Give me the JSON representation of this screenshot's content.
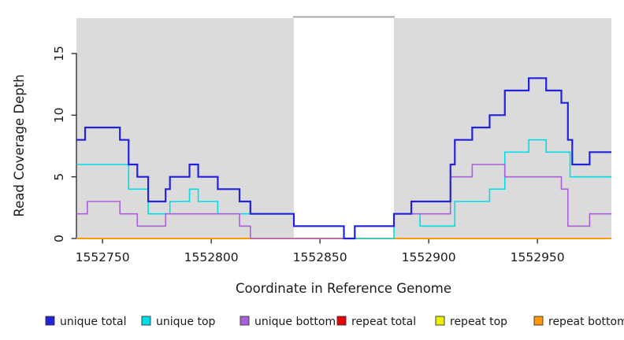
{
  "chart_data": {
    "type": "line",
    "subtype": "step",
    "title": "",
    "xlabel": "Coordinate in Reference Genome",
    "ylabel": "Read Coverage Depth",
    "xlim": [
      1552738,
      1552984
    ],
    "ylim": [
      0,
      17.9
    ],
    "x_ticks": [
      1552750,
      1552800,
      1552850,
      1552900,
      1552950
    ],
    "y_ticks": [
      0,
      5,
      10,
      15
    ],
    "grid": false,
    "legend_position": "bottom",
    "axis_color": "#333333",
    "text_color": "#1a1a1a",
    "background_shading": {
      "color": "#dbdbdb",
      "regions": [
        [
          1552738,
          1552838
        ],
        [
          1552884,
          1552984
        ]
      ],
      "gap_top_rule_color": "#a9a9a9"
    },
    "draw_order": [
      3,
      4,
      5,
      1,
      2,
      0
    ],
    "series": [
      {
        "name": "unique total",
        "color": "#2222dd",
        "width": 2.2,
        "steps": [
          [
            1552738,
            8
          ],
          [
            1552742,
            9
          ],
          [
            1552758,
            8
          ],
          [
            1552762,
            6
          ],
          [
            1552766,
            5
          ],
          [
            1552771,
            3
          ],
          [
            1552779,
            4
          ],
          [
            1552781,
            5
          ],
          [
            1552790,
            6
          ],
          [
            1552794,
            5
          ],
          [
            1552803,
            4
          ],
          [
            1552813,
            3
          ],
          [
            1552818,
            2
          ],
          [
            1552838,
            1
          ],
          [
            1552861,
            0
          ],
          [
            1552866,
            1
          ],
          [
            1552884,
            2
          ],
          [
            1552892,
            3
          ],
          [
            1552910,
            6
          ],
          [
            1552912,
            8
          ],
          [
            1552920,
            9
          ],
          [
            1552928,
            10
          ],
          [
            1552935,
            12
          ],
          [
            1552946,
            13
          ],
          [
            1552954,
            12
          ],
          [
            1552961,
            11
          ],
          [
            1552964,
            8
          ],
          [
            1552966,
            6
          ],
          [
            1552974,
            7
          ]
        ]
      },
      {
        "name": "unique top",
        "color": "#00dde6",
        "width": 1.6,
        "steps": [
          [
            1552738,
            6
          ],
          [
            1552762,
            4
          ],
          [
            1552771,
            2
          ],
          [
            1552781,
            3
          ],
          [
            1552790,
            4
          ],
          [
            1552794,
            3
          ],
          [
            1552803,
            2
          ],
          [
            1552838,
            1
          ],
          [
            1552861,
            0
          ],
          [
            1552884,
            2
          ],
          [
            1552896,
            1
          ],
          [
            1552912,
            3
          ],
          [
            1552928,
            4
          ],
          [
            1552935,
            7
          ],
          [
            1552946,
            8
          ],
          [
            1552954,
            7
          ],
          [
            1552965,
            5
          ]
        ]
      },
      {
        "name": "unique bottom",
        "color": "#ac5fdb",
        "width": 1.6,
        "steps": [
          [
            1552738,
            2
          ],
          [
            1552743,
            3
          ],
          [
            1552758,
            2
          ],
          [
            1552766,
            1
          ],
          [
            1552779,
            2
          ],
          [
            1552813,
            1
          ],
          [
            1552818,
            0
          ],
          [
            1552866,
            1
          ],
          [
            1552884,
            2
          ],
          [
            1552910,
            5
          ],
          [
            1552920,
            6
          ],
          [
            1552935,
            5
          ],
          [
            1552961,
            4
          ],
          [
            1552964,
            1
          ],
          [
            1552974,
            2
          ]
        ]
      },
      {
        "name": "repeat total",
        "color": "#e80000",
        "width": 1.6,
        "steps": [
          [
            1552738,
            0
          ]
        ]
      },
      {
        "name": "repeat top",
        "color": "#eeee00",
        "width": 1.6,
        "steps": [
          [
            1552738,
            0
          ]
        ]
      },
      {
        "name": "repeat bottom",
        "color": "#ff9900",
        "width": 2.0,
        "steps": [
          [
            1552738,
            0
          ]
        ]
      }
    ]
  }
}
